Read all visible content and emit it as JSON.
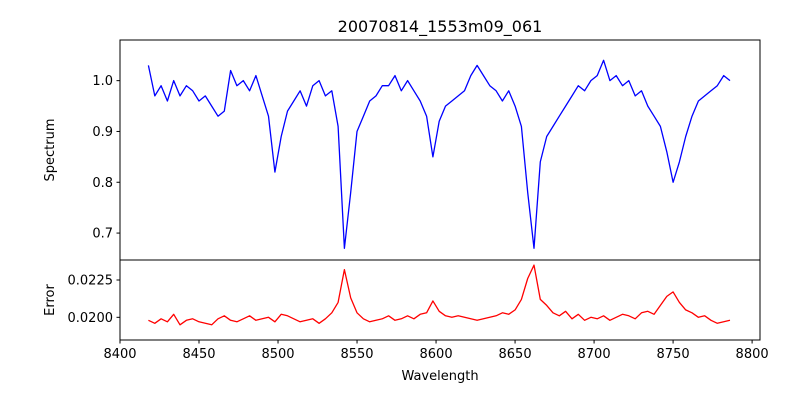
{
  "chart_data": [
    {
      "type": "line",
      "title": "20070814_1553m09_061",
      "xlabel": "",
      "ylabel": "Spectrum",
      "xlim": [
        8400,
        8805
      ],
      "ylim": [
        0.647,
        1.08
      ],
      "yticks": [
        "0.7",
        "0.8",
        "0.9",
        "1.0"
      ],
      "ytick_values": [
        0.7,
        0.8,
        0.9,
        1.0
      ],
      "color": "#0000ff",
      "grid": false,
      "x_start": 8418,
      "x_step": 4,
      "values": [
        1.03,
        0.97,
        0.99,
        0.96,
        1.0,
        0.97,
        0.99,
        0.98,
        0.96,
        0.97,
        0.95,
        0.93,
        0.94,
        1.02,
        0.99,
        1.0,
        0.98,
        1.01,
        0.97,
        0.93,
        0.82,
        0.89,
        0.94,
        0.96,
        0.98,
        0.95,
        0.99,
        1.0,
        0.97,
        0.98,
        0.91,
        0.67,
        0.78,
        0.9,
        0.93,
        0.96,
        0.97,
        0.99,
        0.99,
        1.01,
        0.98,
        1.0,
        0.98,
        0.96,
        0.93,
        0.85,
        0.92,
        0.95,
        0.96,
        0.97,
        0.98,
        1.01,
        1.03,
        1.01,
        0.99,
        0.98,
        0.96,
        0.98,
        0.95,
        0.91,
        0.78,
        0.67,
        0.84,
        0.89,
        0.91,
        0.93,
        0.95,
        0.97,
        0.99,
        0.98,
        1.0,
        1.01,
        1.04,
        1.0,
        1.01,
        0.99,
        1.0,
        0.97,
        0.98,
        0.95,
        0.93,
        0.91,
        0.86,
        0.8,
        0.84,
        0.89,
        0.93,
        0.96,
        0.97,
        0.98,
        0.99,
        1.01,
        1.0
      ]
    },
    {
      "type": "line",
      "xlabel": "Wavelength",
      "ylabel": "Error",
      "xlim": [
        8400,
        8805
      ],
      "ylim": [
        0.01848,
        0.02384
      ],
      "xticks": [
        "8400",
        "8450",
        "8500",
        "8550",
        "8600",
        "8650",
        "8700",
        "8750",
        "8800"
      ],
      "xtick_values": [
        8400,
        8450,
        8500,
        8550,
        8600,
        8650,
        8700,
        8750,
        8800
      ],
      "yticks": [
        "0.0200",
        "0.0225"
      ],
      "ytick_values": [
        0.02,
        0.0225
      ],
      "color": "#ff0000",
      "grid": false,
      "x_start": 8418,
      "x_step": 4,
      "values": [
        0.0198,
        0.0196,
        0.0199,
        0.0197,
        0.0202,
        0.0195,
        0.0198,
        0.0199,
        0.0197,
        0.0196,
        0.0195,
        0.0199,
        0.0201,
        0.0198,
        0.0197,
        0.0199,
        0.0201,
        0.0198,
        0.0199,
        0.02,
        0.0197,
        0.0202,
        0.0201,
        0.0199,
        0.0197,
        0.0198,
        0.0199,
        0.0196,
        0.0199,
        0.0203,
        0.021,
        0.0232,
        0.0213,
        0.0203,
        0.0199,
        0.0197,
        0.0198,
        0.0199,
        0.0201,
        0.0198,
        0.0199,
        0.0201,
        0.0199,
        0.0202,
        0.0203,
        0.0211,
        0.0204,
        0.0201,
        0.02,
        0.0201,
        0.02,
        0.0199,
        0.0198,
        0.0199,
        0.02,
        0.0201,
        0.0203,
        0.0202,
        0.0205,
        0.0212,
        0.0226,
        0.0235,
        0.0212,
        0.0208,
        0.0203,
        0.0201,
        0.0204,
        0.0199,
        0.0202,
        0.0198,
        0.02,
        0.0199,
        0.0201,
        0.0198,
        0.02,
        0.0202,
        0.0201,
        0.0199,
        0.0203,
        0.0204,
        0.0202,
        0.0208,
        0.0214,
        0.0217,
        0.021,
        0.0205,
        0.0203,
        0.02,
        0.0201,
        0.0198,
        0.0196,
        0.0197,
        0.0198
      ]
    }
  ]
}
